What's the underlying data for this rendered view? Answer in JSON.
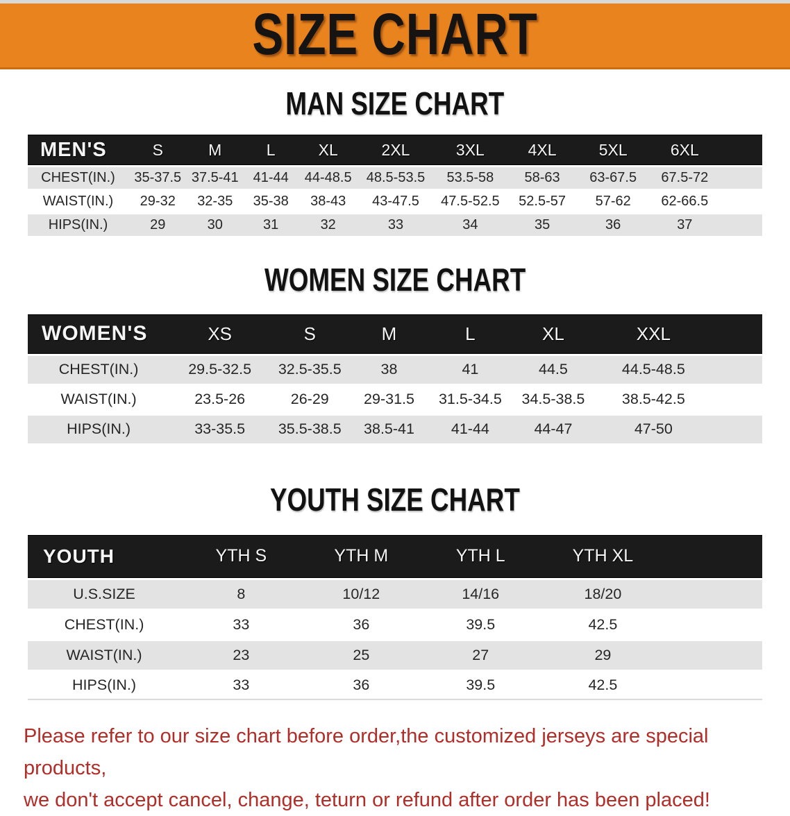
{
  "theme": {
    "banner_bg": "#E8831E",
    "band_bg": "#1b1b1b",
    "stripe_gray": "#e3e3e3",
    "footer_red": "#b22d28"
  },
  "banner": {
    "title": "SIZE CHART"
  },
  "sections": [
    {
      "title": "MAN SIZE CHART",
      "table": {
        "corner": "MEN'S",
        "sizes": [
          "S",
          "M",
          "L",
          "XL",
          "2XL",
          "3XL",
          "4XL",
          "5XL",
          "6XL"
        ],
        "rows": [
          {
            "label": "CHEST(IN.)",
            "values": [
              "35-37.5",
              "37.5-41",
              "41-44",
              "44-48.5",
              "48.5-53.5",
              "53.5-58",
              "58-63",
              "63-67.5",
              "67.5-72"
            ]
          },
          {
            "label": "WAIST(IN.)",
            "values": [
              "29-32",
              "32-35",
              "35-38",
              "38-43",
              "43-47.5",
              "47.5-52.5",
              "52.5-57",
              "57-62",
              "62-66.5"
            ]
          },
          {
            "label": "HIPS(IN.)",
            "values": [
              "29",
              "30",
              "31",
              "32",
              "33",
              "34",
              "35",
              "36",
              "37"
            ]
          }
        ]
      }
    },
    {
      "title": "WOMEN SIZE CHART",
      "table": {
        "corner": "WOMEN'S",
        "sizes": [
          "XS",
          "S",
          "M",
          "L",
          "XL",
          "XXL"
        ],
        "rows": [
          {
            "label": "CHEST(IN.)",
            "values": [
              "29.5-32.5",
              "32.5-35.5",
              "38",
              "41",
              "44.5",
              "44.5-48.5"
            ]
          },
          {
            "label": "WAIST(IN.)",
            "values": [
              "23.5-26",
              "26-29",
              "29-31.5",
              "31.5-34.5",
              "34.5-38.5",
              "38.5-42.5"
            ]
          },
          {
            "label": "HIPS(IN.)",
            "values": [
              "33-35.5",
              "35.5-38.5",
              "38.5-41",
              "41-44",
              "44-47",
              "47-50"
            ]
          }
        ]
      }
    },
    {
      "title": "YOUTH SIZE CHART",
      "table": {
        "corner": "YOUTH",
        "sizes": [
          "YTH S",
          "YTH M",
          "YTH L",
          "YTH XL"
        ],
        "rows": [
          {
            "label": "U.S.SIZE",
            "values": [
              "8",
              "10/12",
              "14/16",
              "18/20"
            ]
          },
          {
            "label": "CHEST(IN.)",
            "values": [
              "33",
              "36",
              "39.5",
              "42.5"
            ]
          },
          {
            "label": "WAIST(IN.)",
            "values": [
              "23",
              "25",
              "27",
              "29"
            ]
          },
          {
            "label": "HIPS(IN.)",
            "values": [
              "33",
              "36",
              "39.5",
              "42.5"
            ]
          }
        ]
      }
    }
  ],
  "footer": {
    "lines": [
      "Please refer to our size chart before order,the customized jerseys are special products,",
      "we don't accept cancel, change, teturn or refund after order has been placed!"
    ]
  }
}
